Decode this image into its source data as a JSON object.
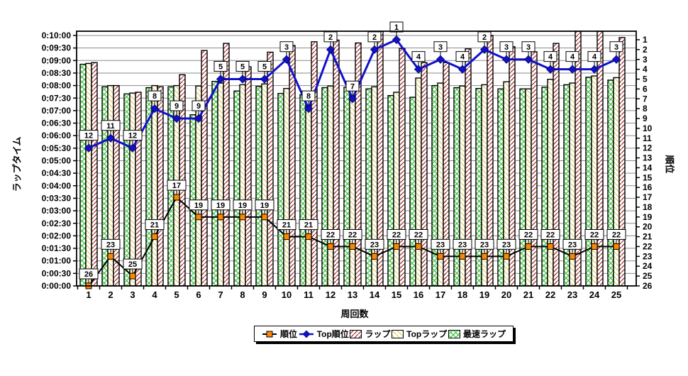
{
  "chart_data": {
    "type": "combo-bar-line",
    "x_axis": {
      "title": "周回数",
      "categories": [
        "1",
        "2",
        "3",
        "4",
        "5",
        "6",
        "7",
        "8",
        "9",
        "10",
        "11",
        "12",
        "13",
        "14",
        "15",
        "16",
        "17",
        "18",
        "19",
        "20",
        "21",
        "22",
        "23",
        "24",
        "25"
      ]
    },
    "y_left": {
      "title": "ラップタイム",
      "min_seconds": 0,
      "max_seconds": 600,
      "step_seconds": 30,
      "tick_labels": [
        "0:00:00",
        "0:00:30",
        "0:01:00",
        "0:01:30",
        "0:02:00",
        "0:02:30",
        "0:03:00",
        "0:03:30",
        "0:04:00",
        "0:04:30",
        "0:05:00",
        "0:05:30",
        "0:06:00",
        "0:06:30",
        "0:07:00",
        "0:07:30",
        "0:08:00",
        "0:08:30",
        "0:09:00",
        "0:09:30",
        "0:10:00"
      ]
    },
    "y_right": {
      "title": "順位",
      "min": 1,
      "max": 26
    },
    "series": [
      {
        "name": "順位",
        "type": "line",
        "axis": "right",
        "marker": "square",
        "marker_color": "#ff8800",
        "line_color": "#000000",
        "data_labels": true,
        "values": [
          26,
          23,
          25,
          21,
          17,
          19,
          19,
          19,
          19,
          21,
          21,
          22,
          22,
          23,
          22,
          22,
          23,
          23,
          23,
          23,
          22,
          22,
          23,
          22,
          22
        ]
      },
      {
        "name": "Top順位",
        "type": "line",
        "axis": "right",
        "marker": "diamond",
        "marker_color": "#1111cc",
        "line_color": "#1111cc",
        "data_labels": true,
        "values": [
          12,
          11,
          12,
          8,
          9,
          9,
          5,
          5,
          5,
          3,
          8,
          2,
          7,
          2,
          1,
          4,
          3,
          4,
          2,
          3,
          3,
          4,
          4,
          4,
          3
        ]
      },
      {
        "name": "ラップ",
        "type": "bar",
        "axis": "left",
        "pattern": "red-diagonal-hatch",
        "pattern_color": "#a03030",
        "values": [
          "8:55",
          "8:00",
          "7:44",
          "7:57",
          "8:26",
          "9:24",
          "9:41",
          "8:45",
          "9:20",
          "9:36",
          "9:45",
          "9:49",
          "9:42",
          "10:10",
          "9:29",
          "8:55",
          "8:55",
          "9:28",
          "10:00",
          "9:33",
          "9:21",
          "9:41",
          "10:10",
          "10:10",
          "9:55"
        ]
      },
      {
        "name": "Topラップ",
        "type": "bar",
        "axis": "left",
        "pattern": "yellow-diagonal-hatch",
        "pattern_color": "#ddca4a",
        "values": [
          "8:53",
          "8:00",
          "7:42",
          "8:00",
          "8:00",
          "7:59",
          "8:06",
          "8:02",
          "8:04",
          "7:53",
          "7:44",
          "7:59",
          "8:00",
          "7:57",
          "7:44",
          "8:18",
          "8:06",
          "7:59",
          "8:02",
          "8:09",
          "7:52",
          "8:15",
          "8:06",
          "8:23",
          "8:19"
        ]
      },
      {
        "name": "最速ラップ",
        "type": "bar",
        "axis": "left",
        "pattern": "green-crosshatch",
        "pattern_color": "#3cc23c",
        "values": [
          "8:51",
          "7:57",
          "7:40",
          "7:55",
          "7:57",
          "6:50",
          "8:10",
          "7:47",
          "7:58",
          "7:41",
          "7:38",
          "7:55",
          "7:56",
          "7:52",
          "7:36",
          "7:32",
          "8:00",
          "7:55",
          "7:53",
          "7:52",
          "7:52",
          "7:56",
          "8:02",
          "8:20",
          "8:13"
        ]
      }
    ],
    "legend": {
      "position": "bottom",
      "items": [
        "順位",
        "Top順位",
        "ラップ",
        "Topラップ",
        "最速ラップ"
      ]
    },
    "notes": "ラップ bars on laps 14, 23, 24 are clipped at the top of the plot area"
  }
}
